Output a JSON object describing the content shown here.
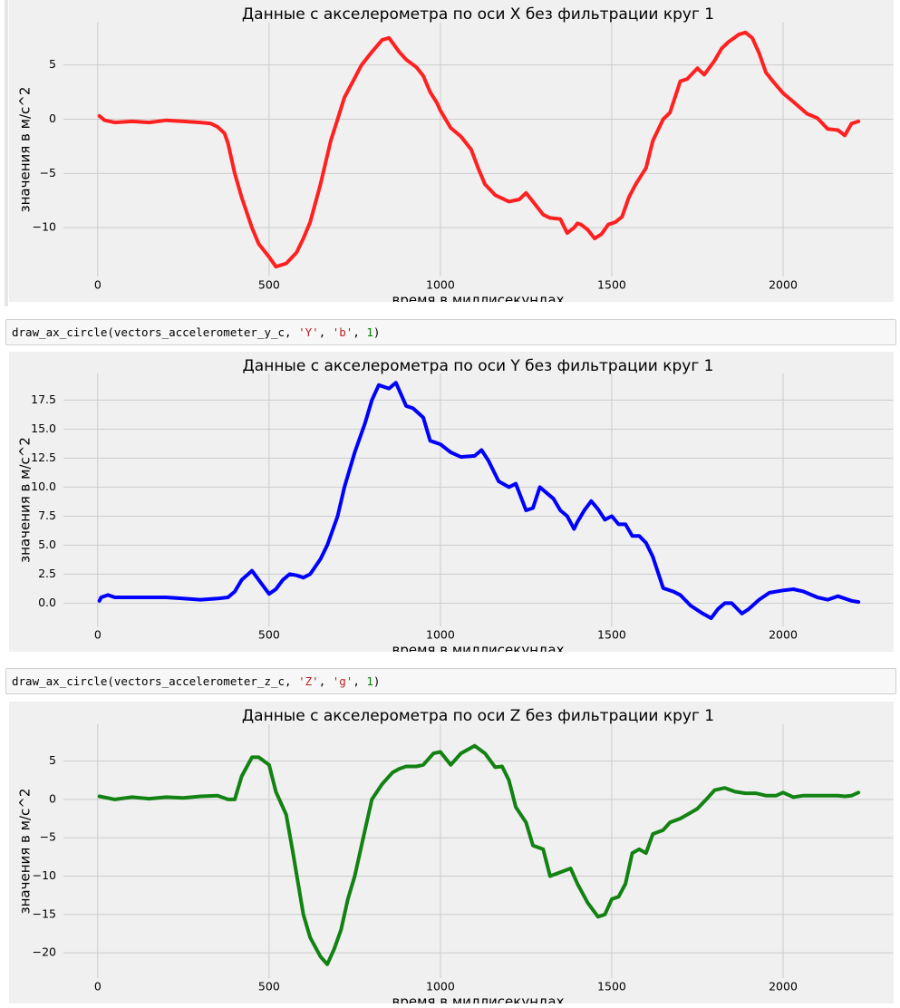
{
  "code_cells": [
    {
      "fn": "draw_ax_circle",
      "arg_var": "vectors_accelerometer_y_c",
      "arg_axis": "'Y'",
      "arg_color": "'b'",
      "arg_circle": "1"
    },
    {
      "fn": "draw_ax_circle",
      "arg_var": "vectors_accelerometer_z_c",
      "arg_axis": "'Z'",
      "arg_color": "'g'",
      "arg_circle": "1"
    }
  ],
  "chart_data": [
    {
      "type": "line",
      "title": "Данные с акселерометра по оси X без фильтрации круг 1",
      "xlabel": "время в миллисекундах",
      "ylabel": "значения в м/с^2",
      "xlim": [
        -100,
        2320
      ],
      "ylim": [
        -14.5,
        8.9
      ],
      "xticks": [
        0,
        500,
        1000,
        1500,
        2000
      ],
      "yticks": [
        -10,
        -5,
        0,
        5
      ],
      "ytick_labels": [
        "−10",
        "−5",
        "0",
        "5"
      ],
      "grid": true,
      "color": "#ff2020",
      "x": [
        5,
        20,
        50,
        100,
        150,
        200,
        250,
        300,
        330,
        350,
        370,
        380,
        400,
        420,
        450,
        470,
        500,
        520,
        550,
        580,
        600,
        620,
        650,
        680,
        700,
        720,
        750,
        770,
        800,
        830,
        850,
        880,
        900,
        930,
        950,
        970,
        990,
        1000,
        1030,
        1060,
        1090,
        1110,
        1130,
        1160,
        1180,
        1200,
        1230,
        1250,
        1270,
        1300,
        1320,
        1350,
        1370,
        1390,
        1400,
        1410,
        1430,
        1450,
        1470,
        1490,
        1510,
        1530,
        1550,
        1570,
        1600,
        1620,
        1650,
        1670,
        1700,
        1720,
        1750,
        1770,
        1800,
        1820,
        1840,
        1870,
        1890,
        1910,
        1930,
        1950,
        1970,
        2000,
        2030,
        2070,
        2100,
        2130,
        2160,
        2180,
        2200,
        2220
      ],
      "y": [
        0.3,
        -0.1,
        -0.3,
        -0.2,
        -0.3,
        -0.1,
        -0.2,
        -0.3,
        -0.4,
        -0.7,
        -1.3,
        -2.2,
        -5,
        -7.2,
        -10,
        -11.5,
        -12.7,
        -13.6,
        -13.3,
        -12.3,
        -11,
        -9.5,
        -6,
        -2,
        0,
        2,
        3.8,
        5,
        6.2,
        7.3,
        7.5,
        6.2,
        5.5,
        4.8,
        4,
        2.5,
        1.5,
        0.8,
        -0.8,
        -1.6,
        -2.8,
        -4.5,
        -6,
        -7,
        -7.3,
        -7.6,
        -7.4,
        -6.8,
        -7.6,
        -8.8,
        -9.1,
        -9.2,
        -10.5,
        -10,
        -9.6,
        -9.7,
        -10.2,
        -11,
        -10.6,
        -9.7,
        -9.5,
        -9,
        -7.2,
        -6,
        -4.5,
        -2,
        0,
        0.6,
        3.5,
        3.7,
        4.7,
        4.1,
        5.4,
        6.5,
        7.1,
        7.8,
        8,
        7.5,
        6.1,
        4.3,
        3.5,
        2.4,
        1.6,
        0.5,
        0.1,
        -0.9,
        -1,
        -1.5,
        -0.4,
        -0.2
      ]
    },
    {
      "type": "line",
      "title": "Данные с акселерометра по оси Y без фильтрации круг 1",
      "xlabel": "время в миллисекундах",
      "ylabel": "значения в м/с^2",
      "xlim": [
        -100,
        2320
      ],
      "ylim": [
        -2.0,
        19.8
      ],
      "xticks": [
        0,
        500,
        1000,
        1500,
        2000
      ],
      "yticks": [
        0,
        2.5,
        5,
        7.5,
        10,
        12.5,
        15,
        17.5
      ],
      "ytick_labels": [
        "0.0",
        "2.5",
        "5.0",
        "7.5",
        "10.0",
        "12.5",
        "15.0",
        "17.5"
      ],
      "grid": true,
      "color": "#0000ff",
      "x": [
        5,
        10,
        30,
        50,
        100,
        150,
        200,
        250,
        300,
        350,
        380,
        400,
        420,
        450,
        470,
        500,
        520,
        540,
        560,
        580,
        600,
        620,
        650,
        670,
        700,
        720,
        750,
        780,
        800,
        820,
        850,
        870,
        900,
        920,
        950,
        970,
        1000,
        1030,
        1060,
        1100,
        1120,
        1140,
        1170,
        1200,
        1220,
        1250,
        1270,
        1290,
        1310,
        1330,
        1350,
        1370,
        1390,
        1400,
        1420,
        1440,
        1460,
        1480,
        1500,
        1520,
        1540,
        1560,
        1580,
        1600,
        1620,
        1650,
        1680,
        1700,
        1730,
        1760,
        1790,
        1810,
        1830,
        1850,
        1880,
        1900,
        1930,
        1960,
        2000,
        2030,
        2060,
        2100,
        2130,
        2160,
        2200,
        2220
      ],
      "y": [
        0.2,
        0.5,
        0.7,
        0.5,
        0.5,
        0.5,
        0.5,
        0.4,
        0.3,
        0.4,
        0.5,
        1,
        2,
        2.8,
        2,
        0.8,
        1.2,
        2,
        2.5,
        2.4,
        2.2,
        2.5,
        3.8,
        5,
        7.5,
        10,
        13,
        15.5,
        17.5,
        18.8,
        18.5,
        19,
        17,
        16.8,
        16,
        14,
        13.7,
        13,
        12.6,
        12.7,
        13.2,
        12.3,
        10.5,
        10,
        10.3,
        8,
        8.2,
        10,
        9.5,
        9,
        8,
        7.5,
        6.4,
        7,
        8,
        8.8,
        8.1,
        7.2,
        7.5,
        6.8,
        6.8,
        5.8,
        5.8,
        5.2,
        4,
        1.3,
        1,
        0.7,
        -0.2,
        -0.8,
        -1.3,
        -0.5,
        0,
        0,
        -0.9,
        -0.5,
        0.3,
        0.9,
        1.1,
        1.2,
        1,
        0.5,
        0.3,
        0.6,
        0.2,
        0.1
      ]
    },
    {
      "type": "line",
      "title": "Данные с акселерометра по оси Z без фильтрации круг 1",
      "xlabel": "время в миллисекундах",
      "ylabel": "значения в м/с^2",
      "xlim": [
        -100,
        2320
      ],
      "ylim": [
        -23.3,
        9.8
      ],
      "xticks": [
        0,
        500,
        1000,
        1500,
        2000
      ],
      "yticks": [
        -20,
        -15,
        -10,
        -5,
        0,
        5
      ],
      "ytick_labels": [
        "−20",
        "−15",
        "−10",
        "−5",
        "0",
        "5"
      ],
      "grid": true,
      "color": "#128212",
      "x": [
        5,
        50,
        100,
        150,
        200,
        250,
        300,
        350,
        380,
        400,
        420,
        450,
        470,
        500,
        520,
        550,
        570,
        600,
        620,
        650,
        670,
        690,
        710,
        730,
        750,
        780,
        800,
        830,
        860,
        880,
        900,
        930,
        950,
        980,
        1000,
        1030,
        1060,
        1100,
        1130,
        1160,
        1180,
        1200,
        1220,
        1250,
        1270,
        1300,
        1320,
        1350,
        1380,
        1400,
        1430,
        1460,
        1480,
        1500,
        1520,
        1540,
        1560,
        1580,
        1600,
        1620,
        1650,
        1670,
        1700,
        1720,
        1750,
        1780,
        1800,
        1830,
        1860,
        1890,
        1920,
        1950,
        1980,
        2000,
        2030,
        2060,
        2100,
        2130,
        2160,
        2180,
        2200,
        2220
      ],
      "y": [
        0.4,
        0,
        0.3,
        0.1,
        0.3,
        0.2,
        0.4,
        0.5,
        0,
        0,
        3,
        5.5,
        5.5,
        4.5,
        1,
        -2,
        -7,
        -15,
        -18,
        -20.5,
        -21.5,
        -19.5,
        -17,
        -13,
        -10,
        -4,
        0,
        2,
        3.5,
        4,
        4.3,
        4.3,
        4.5,
        6,
        6.2,
        4.5,
        6,
        7,
        6,
        4.2,
        4.3,
        2.5,
        -1,
        -3,
        -6,
        -6.5,
        -10,
        -9.5,
        -9,
        -11,
        -13.5,
        -15.3,
        -15,
        -13,
        -12.7,
        -11,
        -7,
        -6.5,
        -7,
        -4.5,
        -4,
        -3,
        -2.5,
        -2,
        -1.2,
        0.2,
        1.2,
        1.5,
        1,
        0.8,
        0.8,
        0.5,
        0.5,
        0.9,
        0.3,
        0.5,
        0.5,
        0.5,
        0.5,
        0.4,
        0.5,
        0.9
      ]
    }
  ]
}
